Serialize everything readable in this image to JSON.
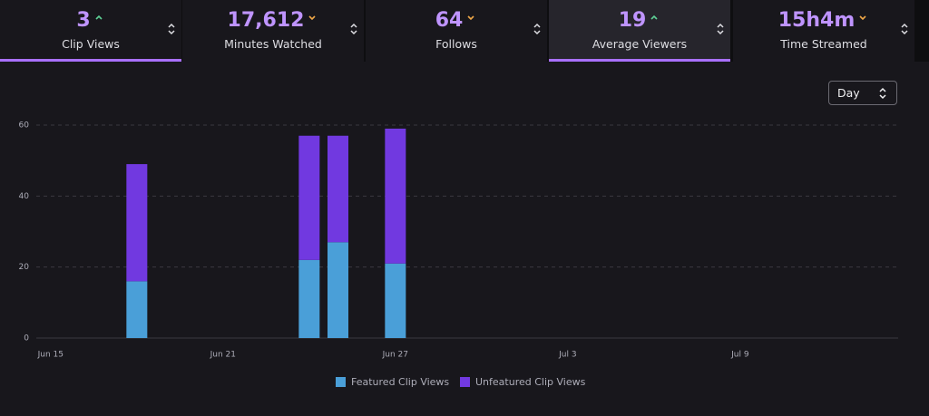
{
  "stats": [
    {
      "value": "3",
      "label": "Clip Views",
      "trend": "up",
      "selected": true
    },
    {
      "value": "17,612",
      "label": "Minutes Watched",
      "trend": "down",
      "selected": false
    },
    {
      "value": "64",
      "label": "Follows",
      "trend": "down",
      "selected": false
    },
    {
      "value": "19",
      "label": "Average Viewers",
      "trend": "up",
      "selected": true
    },
    {
      "value": "15h4m",
      "label": "Time Streamed",
      "trend": "down",
      "selected": false
    }
  ],
  "interval_select": "Day",
  "chart_data": {
    "type": "stacked-bar",
    "categories": [
      "Jun 15",
      null,
      null,
      null,
      null,
      null,
      "Jun 21",
      null,
      null,
      null,
      null,
      null,
      "Jun 27",
      null,
      null,
      null,
      null,
      null,
      "Jul 3",
      null,
      null,
      null,
      null,
      null,
      "Jul 9",
      null,
      null,
      null,
      null,
      null
    ],
    "series": [
      {
        "name": "Featured Clip Views",
        "color": "#4a9fd8",
        "values": [
          null,
          null,
          null,
          16,
          null,
          null,
          null,
          null,
          null,
          22,
          27,
          null,
          21,
          null,
          null,
          null,
          null,
          null,
          null,
          null,
          null,
          null,
          null,
          null,
          null,
          null,
          null,
          null,
          null,
          null
        ]
      },
      {
        "name": "Unfeatured Clip Views",
        "color": "#7139e0",
        "values": [
          null,
          null,
          null,
          33,
          null,
          null,
          null,
          null,
          null,
          35,
          30,
          null,
          38,
          null,
          null,
          null,
          null,
          null,
          null,
          null,
          null,
          null,
          null,
          null,
          null,
          null,
          null,
          null,
          null,
          null
        ]
      }
    ],
    "ylim": [
      0,
      60
    ],
    "yticks": [
      0,
      20,
      40,
      60
    ],
    "grid": true,
    "legend": "bottom"
  }
}
